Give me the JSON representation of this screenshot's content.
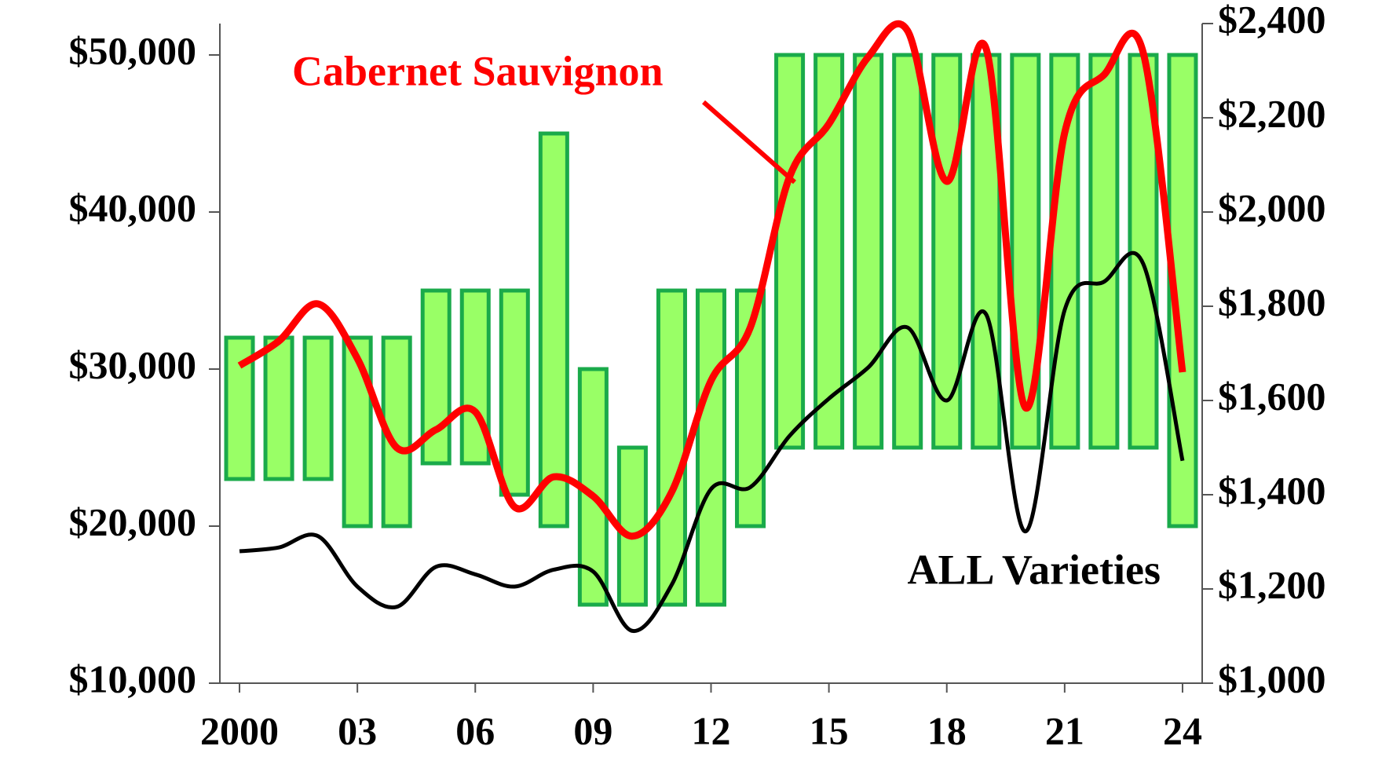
{
  "chart_data": {
    "type": "floating-bar-line",
    "x": [
      2000,
      2001,
      2002,
      2003,
      2004,
      2005,
      2006,
      2007,
      2008,
      2009,
      2010,
      2011,
      2012,
      2013,
      2014,
      2015,
      2016,
      2017,
      2018,
      2019,
      2020,
      2021,
      2022,
      2023,
      2024
    ],
    "xlim": [
      1999.5,
      2024.5
    ],
    "xticks": [
      2000,
      {
        "value": 2003,
        "label": "03"
      },
      {
        "value": 2006,
        "label": "06"
      },
      {
        "value": 2009,
        "label": "09"
      },
      {
        "value": 2012,
        "label": "12"
      },
      {
        "value": 2015,
        "label": "15"
      },
      {
        "value": 2018,
        "label": "18"
      },
      {
        "value": 2021,
        "label": "21"
      },
      {
        "value": 2024,
        "label": "24"
      }
    ],
    "ylim": [
      10000,
      52000
    ],
    "yticks": [
      {
        "value": 10000,
        "label": "$10,000"
      },
      {
        "value": 20000,
        "label": "$20,000"
      },
      {
        "value": 30000,
        "label": "$30,000"
      },
      {
        "value": 40000,
        "label": "$40,000"
      },
      {
        "value": 50000,
        "label": "$50,000"
      }
    ],
    "y2lim": [
      1000,
      2400
    ],
    "y2ticks": [
      {
        "value": 1000,
        "label": "$1,000"
      },
      {
        "value": 1200,
        "label": "$1,200"
      },
      {
        "value": 1400,
        "label": "$1,400"
      },
      {
        "value": 1600,
        "label": "$1,600"
      },
      {
        "value": 1800,
        "label": "$1,800"
      },
      {
        "value": 2000,
        "label": "$2,000"
      },
      {
        "value": 2200,
        "label": "$2,200"
      },
      {
        "value": 2400,
        "label": "$2,400"
      }
    ],
    "bars": {
      "color": "#99ff66",
      "edge_color": "#1aaa4a",
      "low": [
        23000,
        23000,
        23000,
        20000,
        20000,
        24000,
        24000,
        22000,
        20000,
        15000,
        15000,
        15000,
        15000,
        20000,
        25000,
        25000,
        25000,
        25000,
        25000,
        25000,
        25000,
        25000,
        25000,
        25000,
        20000
      ],
      "high": [
        32000,
        32000,
        32000,
        32000,
        32000,
        35000,
        35000,
        35000,
        45000,
        30000,
        25000,
        35000,
        35000,
        35000,
        50000,
        50000,
        50000,
        50000,
        50000,
        50000,
        50000,
        50000,
        50000,
        50000,
        50000
      ]
    },
    "series": [
      {
        "name": "Cabernet Sauvignon",
        "color": "#ff0000",
        "axis": "y2",
        "values": [
          1674,
          1726,
          1805,
          1689,
          1500,
          1538,
          1576,
          1374,
          1438,
          1397,
          1312,
          1406,
          1642,
          1755,
          2075,
          2187,
          2329,
          2385,
          2065,
          2347,
          1585,
          2168,
          2291,
          2338,
          1660
        ]
      },
      {
        "name": "ALL Varieties",
        "color": "#000000",
        "axis": "y2",
        "values": [
          1280,
          1288,
          1312,
          1205,
          1162,
          1247,
          1231,
          1205,
          1241,
          1237,
          1111,
          1209,
          1412,
          1416,
          1525,
          1604,
          1670,
          1755,
          1600,
          1783,
          1322,
          1792,
          1852,
          1890,
          1472
        ]
      }
    ]
  }
}
